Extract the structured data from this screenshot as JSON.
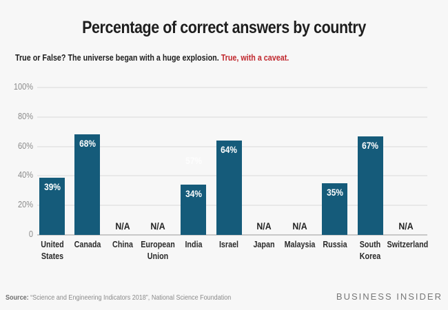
{
  "header": {
    "title": "Percentage of correct answers by country",
    "question": "True or False? The universe began with a huge explosion.",
    "answer": "True, with a caveat."
  },
  "footer": {
    "source_label": "Source:",
    "source_text": "“Science and Engineering Indicators 2018”, National Science Foundation",
    "brand": "BUSINESS INSIDER"
  },
  "colors": {
    "bar": "#155b7a",
    "answer_text": "#c0272d",
    "background": "#f7f7f7"
  },
  "yaxis": {
    "ticks": [
      "0",
      "20%",
      "40%",
      "60%",
      "80%",
      "100%"
    ]
  },
  "ghost_label": "57%",
  "chart_data": {
    "type": "bar",
    "title": "Percentage of correct answers by country",
    "subtitle": "True or False? The universe began with a huge explosion. True, with a caveat.",
    "categories": [
      "United States",
      "Canada",
      "China",
      "European Union",
      "India",
      "Israel",
      "Japan",
      "Malaysia",
      "Russia",
      "South Korea",
      "Switzerland"
    ],
    "values": [
      39,
      68,
      null,
      null,
      34,
      64,
      null,
      null,
      35,
      67,
      null
    ],
    "labels": [
      "39%",
      "68%",
      "N/A",
      "N/A",
      "34%",
      "64%",
      "N/A",
      "N/A",
      "35%",
      "67%",
      "N/A"
    ],
    "xlabel": "",
    "ylabel": "",
    "ylim": [
      0,
      100
    ],
    "yticks": [
      0,
      20,
      40,
      60,
      80,
      100
    ],
    "grid": true,
    "legend": null,
    "annotations": [
      "faint '57%' label above India bar"
    ]
  },
  "xlabels": [
    [
      "United",
      "States"
    ],
    [
      "Canada",
      ""
    ],
    [
      "China",
      ""
    ],
    [
      "European",
      "Union"
    ],
    [
      "India",
      ""
    ],
    [
      "Israel",
      ""
    ],
    [
      "Japan",
      ""
    ],
    [
      "Malaysia",
      ""
    ],
    [
      "Russia",
      ""
    ],
    [
      "South",
      "Korea"
    ],
    [
      "Switzerland",
      ""
    ]
  ]
}
